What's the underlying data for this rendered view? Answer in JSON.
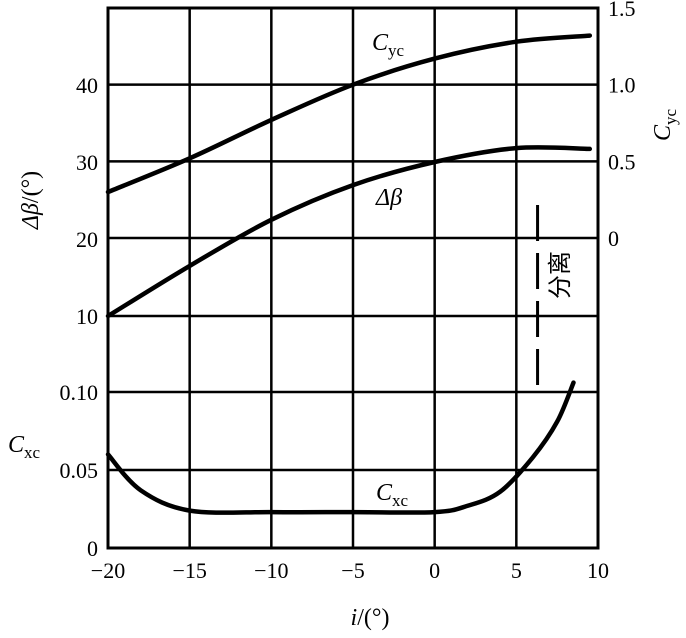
{
  "chart_data": {
    "type": "line",
    "x_axis": {
      "label_var": "i",
      "label_unit": "/(°)",
      "range": [
        -20,
        10
      ],
      "ticks": [
        -20,
        -15,
        -10,
        -5,
        0,
        5,
        10
      ],
      "tick_labels": [
        "−20",
        "−15",
        "−10",
        "−5",
        "0",
        "5",
        "10"
      ]
    },
    "y_axes": {
      "left_upper": {
        "label_symbol": "Δβ",
        "label_unit": "/(°)",
        "range": [
          10,
          50
        ],
        "ticks": [
          10,
          20,
          30,
          40
        ],
        "tick_labels": [
          "10",
          "20",
          "30",
          "40"
        ]
      },
      "left_lower": {
        "label_symbol": "C",
        "label_sub": "xc",
        "range": [
          0,
          0.1
        ],
        "ticks": [
          0,
          0.05,
          0.1
        ],
        "tick_labels": [
          "0",
          "0.05",
          "0.10"
        ]
      },
      "right": {
        "label_symbol": "C",
        "label_sub": "yc",
        "range": [
          0,
          1.5
        ],
        "ticks": [
          0,
          0.5,
          1.0,
          1.5
        ],
        "tick_labels": [
          "0",
          "0.5",
          "1.0",
          "1.5"
        ]
      }
    },
    "grid": true,
    "series": [
      {
        "name": "Cyc",
        "axis": "right",
        "x": [
          -20,
          -15,
          -10,
          -5,
          0,
          5,
          9.5
        ],
        "y": [
          0.3,
          0.52,
          0.77,
          1.0,
          1.17,
          1.28,
          1.32
        ]
      },
      {
        "name": "Δβ",
        "axis": "left_upper",
        "x": [
          -20,
          -15,
          -10,
          -5,
          0,
          5,
          9.5
        ],
        "y": [
          10.0,
          16.5,
          22.5,
          27.0,
          30.0,
          31.8,
          31.7
        ]
      },
      {
        "name": "Cxc",
        "axis": "left_lower",
        "x": [
          -20,
          -18,
          -15,
          -10,
          -5,
          0,
          2,
          4,
          6,
          7.5,
          8.5
        ],
        "y": [
          0.06,
          0.037,
          0.024,
          0.023,
          0.023,
          0.023,
          0.027,
          0.036,
          0.058,
          0.081,
          0.106
        ]
      }
    ],
    "annotations": {
      "curve_label_cyc_main": "C",
      "curve_label_cyc_sub": "yc",
      "curve_label_dbeta": "Δβ",
      "curve_label_cxc_main": "C",
      "curve_label_cxc_sub": "xc",
      "separation_text": "分离",
      "separation_x": 6.3
    }
  }
}
